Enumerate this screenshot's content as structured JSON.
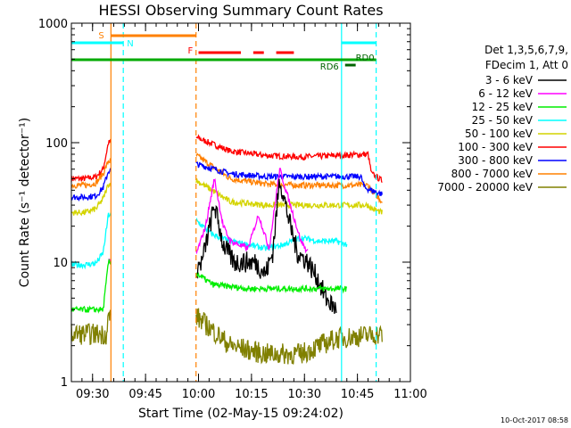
{
  "chart_data": {
    "type": "line",
    "title": "HESSI Observing Summary Count Rates",
    "xlabel": "Start Time (02-May-15 09:24:02)",
    "ylabel": "Count Rate (s⁻¹ detector⁻¹)",
    "yscale": "log",
    "ylim": [
      1,
      1000
    ],
    "xlim_minutes": [
      0,
      96
    ],
    "y_ticks": [
      {
        "value": 1,
        "label": "1"
      },
      {
        "value": 10,
        "label": "10"
      },
      {
        "value": 100,
        "label": "100"
      },
      {
        "value": 1000,
        "label": "1000"
      }
    ],
    "x_ticks": [
      {
        "minute": 6,
        "label": "09:30"
      },
      {
        "minute": 21,
        "label": "09:45"
      },
      {
        "minute": 36,
        "label": "10:00"
      },
      {
        "minute": 51,
        "label": "10:15"
      },
      {
        "minute": 66,
        "label": "10:30"
      },
      {
        "minute": 81,
        "label": "10:45"
      },
      {
        "minute": 96,
        "label": "11:00"
      }
    ],
    "legend_header": [
      "Det 1,3,5,6,7,9,",
      "FDecim 1, Att 0"
    ],
    "legend": [
      {
        "label": "3 - 6 keV",
        "color": "#000000"
      },
      {
        "label": "6 - 12 keV",
        "color": "#ff00ff"
      },
      {
        "label": "12 - 25 keV",
        "color": "#00ee00"
      },
      {
        "label": "25 - 50 keV",
        "color": "#00ffff"
      },
      {
        "label": "50 - 100 keV",
        "color": "#d4d400"
      },
      {
        "label": "100 - 300 keV",
        "color": "#ff0000"
      },
      {
        "label": "300 - 800 keV",
        "color": "#0000ff"
      },
      {
        "label": "800 - 7000 keV",
        "color": "#ff8000"
      },
      {
        "label": "7000 - 20000 keV",
        "color": "#808000"
      }
    ],
    "vertical_markers": [
      {
        "minute": 11.2,
        "color": "#ff8000",
        "style": "solid"
      },
      {
        "minute": 14.7,
        "color": "#00ffff",
        "style": "dashed"
      },
      {
        "minute": 35.3,
        "color": "#ff8000",
        "style": "dashed"
      },
      {
        "minute": 76.5,
        "color": "#00ffff",
        "style": "solid"
      },
      {
        "minute": 86.3,
        "color": "#00ffff",
        "style": "dashed"
      }
    ],
    "flag_bars": [
      {
        "label": "S",
        "color": "#ff8000",
        "segments": [
          [
            11.2,
            35.3
          ]
        ]
      },
      {
        "label": "N",
        "color": "#00ffff",
        "segments": [
          [
            0,
            14.7
          ],
          [
            76.5,
            86.3
          ]
        ]
      },
      {
        "label": "F",
        "color": "#ff0000",
        "segments": [
          [
            36,
            48
          ],
          [
            51.5,
            54.5
          ],
          [
            58,
            63
          ]
        ]
      },
      {
        "label": "RD0",
        "color": "#00aa00",
        "segments": [
          [
            0,
            86.3
          ]
        ]
      },
      {
        "label": "RD6",
        "color": "#006400",
        "segments": [
          [
            77.5,
            80.5
          ]
        ]
      }
    ],
    "gaps": [
      [
        11.2,
        35.3
      ]
    ],
    "series": [
      {
        "name": "100 - 300 keV",
        "color": "#ff0000",
        "points": [
          [
            0,
            50
          ],
          [
            4,
            50
          ],
          [
            7,
            52
          ],
          [
            9,
            60
          ],
          [
            10.5,
            100
          ],
          [
            35.5,
            110
          ],
          [
            45,
            85
          ],
          [
            55,
            78
          ],
          [
            65,
            76
          ],
          [
            75,
            78
          ],
          [
            84,
            80
          ],
          [
            85,
            55
          ],
          [
            88,
            48
          ]
        ]
      },
      {
        "name": "800 - 7000 keV",
        "color": "#ff8000",
        "points": [
          [
            0,
            44
          ],
          [
            4,
            44
          ],
          [
            7,
            46
          ],
          [
            9,
            55
          ],
          [
            10.5,
            70
          ],
          [
            35.5,
            78
          ],
          [
            45,
            50
          ],
          [
            55,
            45
          ],
          [
            65,
            44
          ],
          [
            75,
            44
          ],
          [
            84,
            44
          ],
          [
            85,
            40
          ],
          [
            88,
            32
          ]
        ]
      },
      {
        "name": "300 - 800 keV",
        "color": "#0000ff",
        "points": [
          [
            0,
            35
          ],
          [
            4,
            35
          ],
          [
            7,
            36
          ],
          [
            9,
            42
          ],
          [
            10.5,
            58
          ],
          [
            35.5,
            66
          ],
          [
            45,
            55
          ],
          [
            55,
            52
          ],
          [
            65,
            52
          ],
          [
            75,
            52
          ],
          [
            82,
            52
          ],
          [
            83,
            42
          ],
          [
            88,
            37
          ]
        ]
      },
      {
        "name": "50 - 100 keV",
        "color": "#d4d400",
        "points": [
          [
            0,
            26
          ],
          [
            4,
            26
          ],
          [
            7,
            28
          ],
          [
            9,
            34
          ],
          [
            10.5,
            45
          ],
          [
            35.5,
            48
          ],
          [
            45,
            32
          ],
          [
            55,
            30
          ],
          [
            65,
            30
          ],
          [
            75,
            30
          ],
          [
            84,
            30
          ],
          [
            85,
            28
          ],
          [
            88,
            26
          ]
        ]
      },
      {
        "name": "25 - 50 keV",
        "color": "#00ffff",
        "points": [
          [
            0,
            9.5
          ],
          [
            4,
            9.5
          ],
          [
            7,
            9.8
          ],
          [
            9,
            12
          ],
          [
            10.5,
            25
          ],
          [
            35.5,
            22
          ],
          [
            40,
            17
          ],
          [
            45,
            15
          ],
          [
            50,
            14
          ],
          [
            55,
            13
          ],
          [
            60,
            14
          ],
          [
            65,
            16
          ],
          [
            70,
            15
          ],
          [
            75,
            15
          ],
          [
            78,
            14
          ]
        ]
      },
      {
        "name": "6 - 12 keV",
        "color": "#ff00ff",
        "points": [
          [
            10.5,
            10
          ],
          [
            35.5,
            12
          ],
          [
            38,
            20
          ],
          [
            40.5,
            50
          ],
          [
            43,
            20
          ],
          [
            45,
            15
          ],
          [
            50,
            13
          ],
          [
            53,
            25
          ],
          [
            56,
            13
          ],
          [
            59,
            60
          ],
          [
            62,
            30
          ],
          [
            65,
            15
          ],
          [
            67,
            12
          ]
        ]
      },
      {
        "name": "3 - 6 keV",
        "color": "#000000",
        "points": [
          [
            35.5,
            9
          ],
          [
            37,
            10
          ],
          [
            40.5,
            30
          ],
          [
            43,
            14
          ],
          [
            46,
            10
          ],
          [
            49,
            10
          ],
          [
            52,
            10
          ],
          [
            55,
            8
          ],
          [
            57,
            12
          ],
          [
            59,
            50
          ],
          [
            62,
            20
          ],
          [
            64,
            12
          ],
          [
            67,
            10
          ],
          [
            70,
            7
          ],
          [
            72,
            5
          ],
          [
            75,
            4
          ]
        ]
      },
      {
        "name": "12 - 25 keV",
        "color": "#00ee00",
        "points": [
          [
            0,
            4
          ],
          [
            4,
            4
          ],
          [
            7,
            4
          ],
          [
            9,
            4
          ],
          [
            10.5,
            10
          ],
          [
            35.5,
            8
          ],
          [
            40,
            6.5
          ],
          [
            50,
            6
          ],
          [
            60,
            6
          ],
          [
            70,
            6
          ],
          [
            78,
            6
          ]
        ]
      },
      {
        "name": "7000 - 20000 keV",
        "color": "#808000",
        "points": [
          [
            0,
            2.5
          ],
          [
            10,
            2.5
          ],
          [
            10.5,
            3.5
          ],
          [
            35.5,
            3.5
          ],
          [
            45,
            2
          ],
          [
            55,
            1.7
          ],
          [
            65,
            1.7
          ],
          [
            75,
            2.3
          ],
          [
            88,
            2.5
          ]
        ]
      }
    ]
  },
  "footer": {
    "timestamp": "10-Oct-2017 08:58"
  }
}
